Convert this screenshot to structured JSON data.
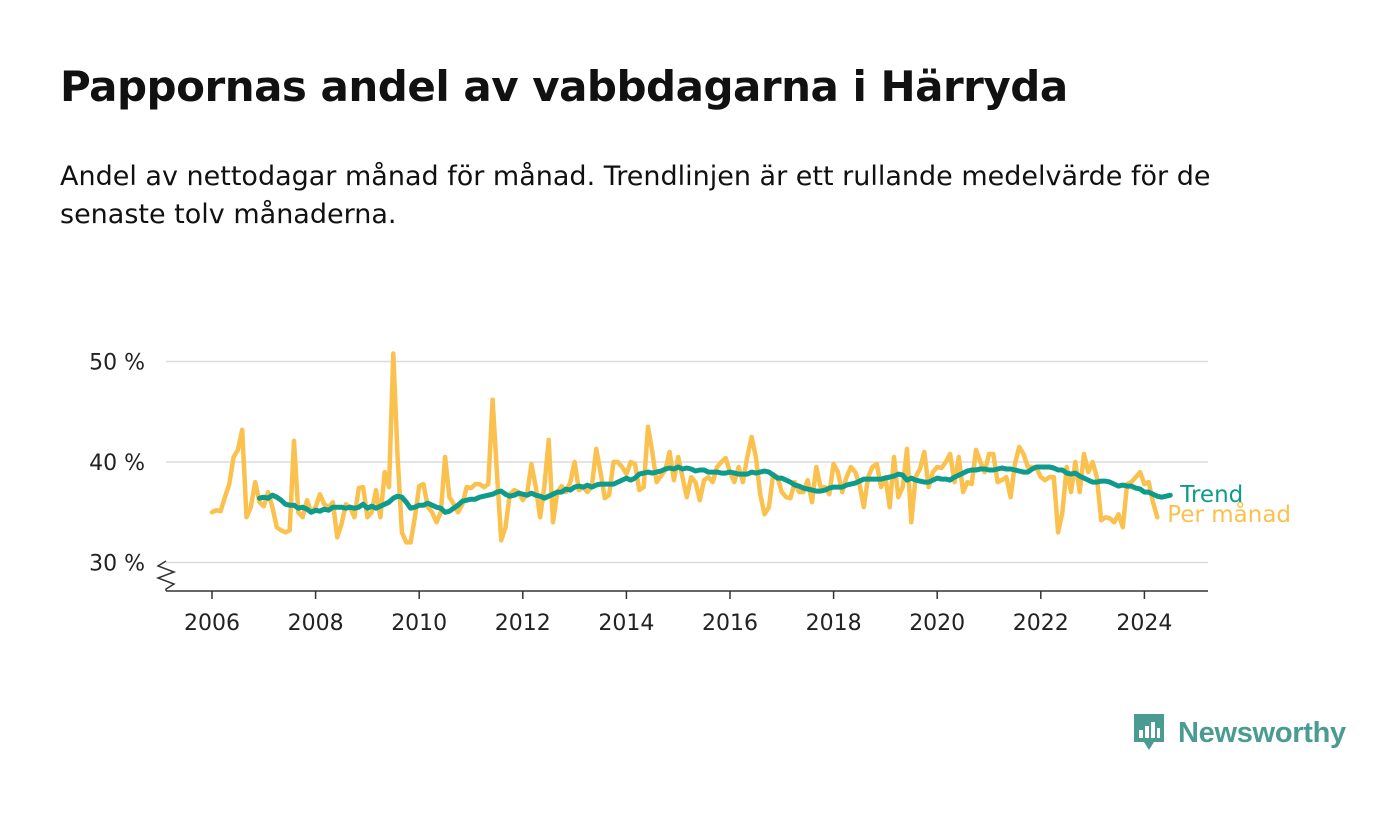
{
  "chart_data": {
    "type": "line",
    "title": "Pappornas andel av vabbdagarna i Härryda",
    "subtitle": "Andel av nettodagar månad för månad. Trendlinjen är ett rullande medelvärde för de senaste tolv månaderna.",
    "x_start": "2006-01",
    "x_tick_labels": [
      "2006",
      "2008",
      "2010",
      "2012",
      "2014",
      "2016",
      "2018",
      "2020",
      "2022",
      "2024"
    ],
    "y_tick_labels": [
      "30 %",
      "40 %",
      "50 %"
    ],
    "y_ticks": [
      30,
      40,
      50
    ],
    "ylim": [
      27,
      52
    ],
    "y_axis_break": true,
    "grid": true,
    "legend": "direct labels at right end of lines",
    "series": [
      {
        "name": "Per månad",
        "color": "#fbc14e",
        "values": [
          35.0,
          35.2,
          35.1,
          36.5,
          37.8,
          40.5,
          41.2,
          43.2,
          34.5,
          35.5,
          38.0,
          36.0,
          35.6,
          37.0,
          35.5,
          33.5,
          33.2,
          33.0,
          33.2,
          42.1,
          35.0,
          34.5,
          36.2,
          35.0,
          35.5,
          36.8,
          35.8,
          35.5,
          36.0,
          32.5,
          33.8,
          35.8,
          35.5,
          34.5,
          37.4,
          37.5,
          34.5,
          35.0,
          37.2,
          34.5,
          39.0,
          37.5,
          50.8,
          40.5,
          33.0,
          32.0,
          32.0,
          34.5,
          37.6,
          37.8,
          35.5,
          35.0,
          34.0,
          35.0,
          40.5,
          36.5,
          35.8,
          35.0,
          35.8,
          37.5,
          37.4,
          37.8,
          37.8,
          37.5,
          37.8,
          46.2,
          39.0,
          32.2,
          33.5,
          36.8,
          37.2,
          37.0,
          36.2,
          36.8,
          39.8,
          37.5,
          34.5,
          37.6,
          42.2,
          34.0,
          37.0,
          37.6,
          37.0,
          38.0,
          40.0,
          37.2,
          37.5,
          37.0,
          37.6,
          41.3,
          39.0,
          36.4,
          36.7,
          40.0,
          40.0,
          39.5,
          38.8,
          40.0,
          39.8,
          37.2,
          37.5,
          43.5,
          41.0,
          38.0,
          38.6,
          39.2,
          41.0,
          38.2,
          40.5,
          38.5,
          36.5,
          38.5,
          38.0,
          36.2,
          38.2,
          38.5,
          38.0,
          39.5,
          40.0,
          40.4,
          39.0,
          38.0,
          39.5,
          38.0,
          40.5,
          42.5,
          40.5,
          36.8,
          34.8,
          35.5,
          38.8,
          38.5,
          37.0,
          36.5,
          36.4,
          38.0,
          37.0,
          37.0,
          38.2,
          36.0,
          39.5,
          37.5,
          37.5,
          36.8,
          39.8,
          39.0,
          37.0,
          38.5,
          39.5,
          39.0,
          37.8,
          35.5,
          38.5,
          39.5,
          39.8,
          37.5,
          38.5,
          35.5,
          40.5,
          36.5,
          37.5,
          41.3,
          34.0,
          38.5,
          39.3,
          41.0,
          37.5,
          39.0,
          39.5,
          39.4,
          40.0,
          40.8,
          38.0,
          40.5,
          37.0,
          38.0,
          37.8,
          41.2,
          40.0,
          39.0,
          40.8,
          40.8,
          38.0,
          38.2,
          38.5,
          36.5,
          39.8,
          41.5,
          40.8,
          39.5,
          39.5,
          39.4,
          38.5,
          38.2,
          38.5,
          38.5,
          33.0,
          35.0,
          39.5,
          37.0,
          40.0,
          37.0,
          40.8,
          39.0,
          40.0,
          38.5,
          34.2,
          34.5,
          34.4,
          34.0,
          34.8,
          33.5,
          37.8,
          38.0,
          38.5,
          39.0,
          37.8,
          38.0,
          36.0,
          34.5
        ]
      },
      {
        "name": "Trend",
        "color": "#0e9b8b",
        "values": [
          null,
          null,
          null,
          null,
          null,
          null,
          null,
          null,
          null,
          null,
          null,
          36.4,
          36.5,
          36.4,
          36.7,
          36.5,
          36.2,
          35.8,
          35.7,
          35.7,
          35.4,
          35.5,
          35.3,
          35.0,
          35.2,
          35.1,
          35.3,
          35.2,
          35.5,
          35.5,
          35.5,
          35.4,
          35.5,
          35.4,
          35.5,
          35.8,
          35.4,
          35.6,
          35.4,
          35.6,
          35.8,
          36.0,
          36.4,
          36.6,
          36.5,
          36.0,
          35.4,
          35.5,
          35.7,
          35.7,
          35.9,
          35.7,
          35.5,
          35.4,
          35.0,
          35.1,
          35.4,
          35.7,
          36.1,
          36.2,
          36.3,
          36.3,
          36.5,
          36.6,
          36.7,
          36.8,
          37.0,
          37.1,
          36.8,
          36.6,
          36.7,
          36.9,
          36.8,
          36.7,
          36.9,
          36.7,
          36.6,
          36.4,
          36.6,
          36.8,
          37.0,
          37.0,
          37.3,
          37.2,
          37.5,
          37.6,
          37.5,
          37.7,
          37.5,
          37.7,
          37.8,
          37.8,
          37.8,
          37.8,
          38.0,
          38.2,
          38.4,
          38.2,
          38.4,
          38.8,
          38.9,
          39.0,
          38.9,
          39.0,
          39.1,
          39.3,
          39.4,
          39.3,
          39.5,
          39.3,
          39.4,
          39.3,
          39.1,
          39.2,
          39.2,
          39.0,
          39.0,
          39.0,
          38.9,
          38.9,
          39.0,
          38.9,
          38.8,
          38.8,
          38.8,
          39.0,
          38.9,
          39.0,
          39.1,
          39.0,
          38.7,
          38.4,
          38.4,
          38.2,
          38.0,
          37.7,
          37.6,
          37.4,
          37.3,
          37.2,
          37.1,
          37.1,
          37.2,
          37.4,
          37.5,
          37.5,
          37.5,
          37.7,
          37.8,
          37.9,
          38.1,
          38.3,
          38.3,
          38.3,
          38.3,
          38.3,
          38.4,
          38.5,
          38.6,
          38.8,
          38.7,
          38.2,
          38.4,
          38.2,
          38.1,
          38.0,
          38.0,
          38.2,
          38.4,
          38.3,
          38.3,
          38.2,
          38.5,
          38.7,
          38.9,
          39.1,
          39.2,
          39.2,
          39.3,
          39.3,
          39.2,
          39.2,
          39.3,
          39.4,
          39.3,
          39.3,
          39.2,
          39.1,
          39.0,
          39.0,
          39.3,
          39.5,
          39.5,
          39.5,
          39.5,
          39.4,
          39.2,
          39.2,
          38.9,
          38.8,
          38.9,
          38.6,
          38.4,
          38.2,
          38.0,
          38.0,
          38.1,
          38.1,
          38.0,
          37.8,
          37.6,
          37.7,
          37.6,
          37.6,
          37.4,
          37.3,
          37.0,
          37.0,
          36.8,
          36.6,
          36.5,
          36.6,
          36.7
        ]
      }
    ]
  },
  "brand": {
    "name": "Newsworthy",
    "icon": "newsworthy-bar-chart-icon",
    "color": "#4a9b92"
  }
}
